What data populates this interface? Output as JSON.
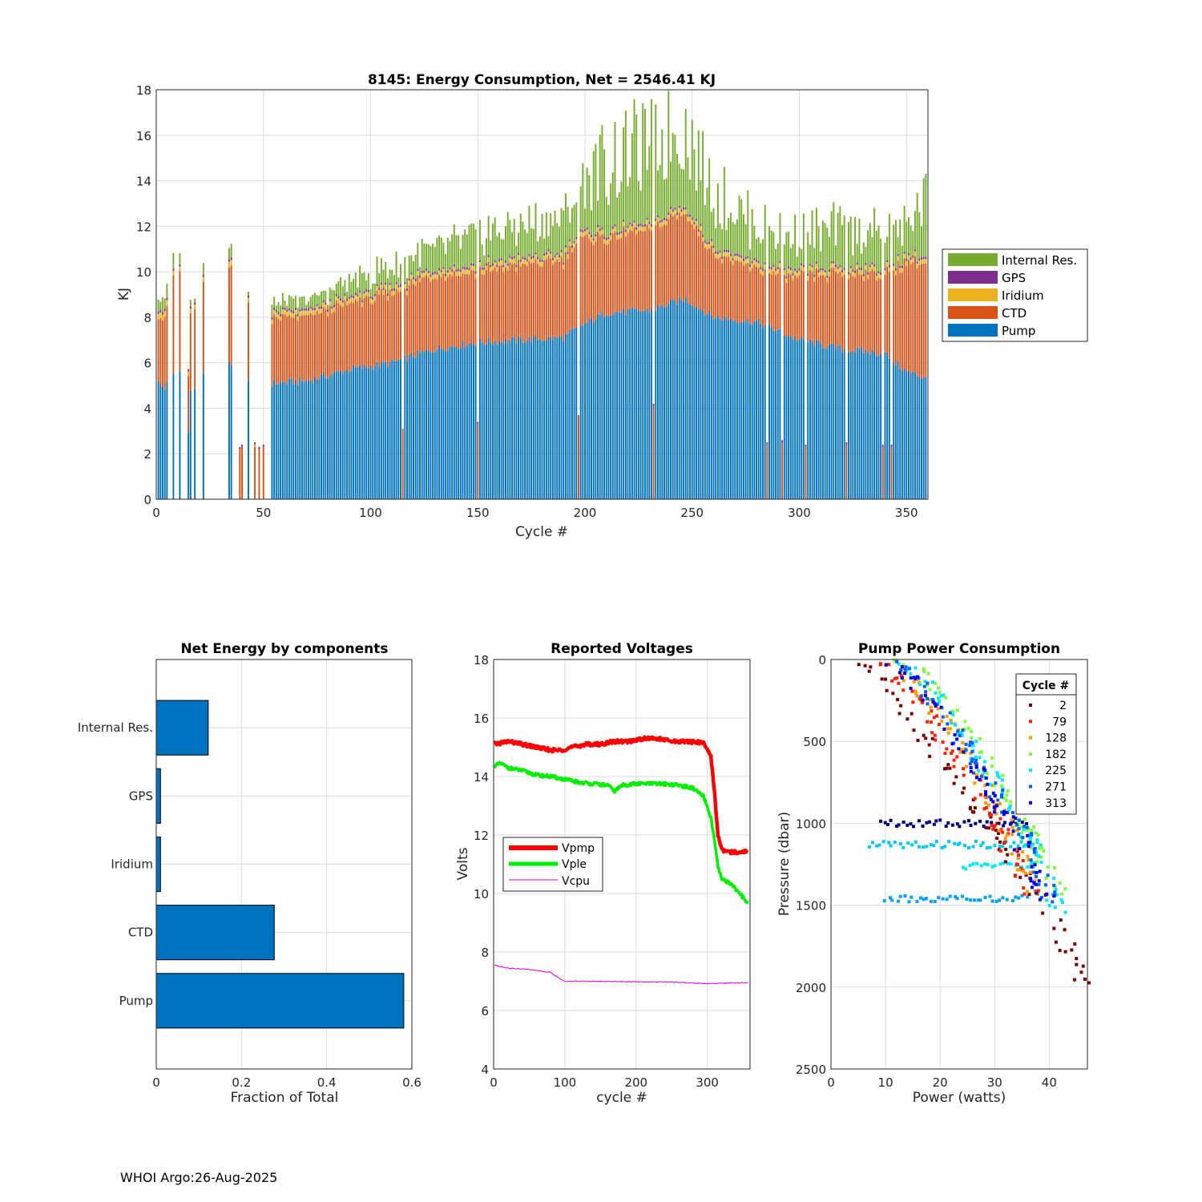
{
  "colors": {
    "Internal Res.": "#77AC30",
    "GPS": "#7E2F8E",
    "Iridium": "#EDB120",
    "CTD": "#D95319",
    "Pump": "#0072BD"
  },
  "footer": "WHOI Argo:26-Aug-2025",
  "chart_data": [
    {
      "id": "energy",
      "type": "bar",
      "stacked": true,
      "title": "8145: Energy Consumption,  Net = 2546.41 KJ",
      "xlabel": "Cycle #",
      "ylabel": "KJ",
      "xlim": [
        0,
        360
      ],
      "ylim": [
        0,
        18
      ],
      "xticks": [
        0,
        50,
        100,
        150,
        200,
        250,
        300,
        350
      ],
      "yticks": [
        0,
        2,
        4,
        6,
        8,
        10,
        12,
        14,
        16,
        18
      ],
      "grid": true,
      "legend_position": "outside-right",
      "legend": [
        "Internal Res.",
        "GPS",
        "Iridium",
        "CTD",
        "Pump"
      ],
      "stack_order": [
        "Pump",
        "CTD",
        "Iridium",
        "GPS",
        "Internal Res."
      ],
      "approx_profile": {
        "cycles": [
          1,
          2,
          4,
          8,
          11,
          15,
          16,
          18,
          22,
          34,
          35,
          43,
          54,
          70,
          90,
          110,
          130,
          150,
          170,
          190,
          198,
          210,
          230,
          247,
          260,
          280,
          300,
          320,
          340,
          350,
          357
        ],
        "Pump": [
          5.1,
          5.0,
          4.9,
          5.5,
          5.6,
          3.0,
          4.8,
          4.7,
          5.7,
          6.0,
          6.0,
          5.4,
          5.1,
          5.2,
          5.7,
          6.0,
          6.6,
          6.9,
          7.0,
          7.1,
          7.6,
          8.2,
          8.3,
          8.8,
          8.0,
          7.8,
          7.0,
          6.6,
          6.4,
          5.6,
          5.4
        ],
        "CTD": [
          2.9,
          3.0,
          3.0,
          4.3,
          4.2,
          2.4,
          3.2,
          3.3,
          4.2,
          4.3,
          4.3,
          3.4,
          2.8,
          2.8,
          2.9,
          3.0,
          3.3,
          3.1,
          3.3,
          3.4,
          3.8,
          3.3,
          3.5,
          3.8,
          2.8,
          2.3,
          2.7,
          3.3,
          3.5,
          4.8,
          5.0
        ],
        "Iridium": [
          0.25,
          0.25,
          0.25,
          0.2,
          0.2,
          0.2,
          0.2,
          0.2,
          0.2,
          0.25,
          0.25,
          0.2,
          0.2,
          0.2,
          0.2,
          0.2,
          0.2,
          0.2,
          0.2,
          0.2,
          0.2,
          0.2,
          0.2,
          0.2,
          0.2,
          0.2,
          0.2,
          0.2,
          0.2,
          0.2,
          0.2
        ],
        "GPS": [
          0.12,
          0.12,
          0.12,
          0.1,
          0.1,
          0.1,
          0.1,
          0.1,
          0.1,
          0.12,
          0.12,
          0.1,
          0.1,
          0.1,
          0.1,
          0.1,
          0.1,
          0.1,
          0.1,
          0.1,
          0.1,
          0.1,
          0.1,
          0.1,
          0.1,
          0.1,
          0.1,
          0.1,
          0.1,
          0.1,
          0.1
        ],
        "Internal Res.": [
          0.6,
          0.5,
          0.4,
          0.5,
          0.4,
          0.0,
          0.3,
          0.3,
          0.4,
          0.6,
          0.5,
          0.4,
          0.4,
          0.4,
          0.7,
          0.9,
          1.0,
          1.4,
          1.5,
          1.6,
          2.3,
          3.2,
          3.6,
          3.6,
          2.6,
          1.7,
          1.6,
          1.7,
          1.6,
          1.4,
          2.5
        ]
      },
      "partial_cycles": [
        {
          "cycle": 39,
          "CTD": 2.2,
          "GPS": 0.1
        },
        {
          "cycle": 40,
          "CTD": 2.3,
          "GPS": 0.1
        },
        {
          "cycle": 46,
          "CTD": 2.3,
          "Iridium": 0.1,
          "GPS": 0.1
        },
        {
          "cycle": 48,
          "CTD": 2.2,
          "GPS": 0.1
        },
        {
          "cycle": 50,
          "CTD": 2.3,
          "GPS": 0.1
        },
        {
          "cycle": 115,
          "CTD": 3.1
        },
        {
          "cycle": 150,
          "CTD": 3.3,
          "GPS": 0.1
        },
        {
          "cycle": 197,
          "CTD": 3.7
        },
        {
          "cycle": 232,
          "CTD": 4.1,
          "GPS": 0.1
        },
        {
          "cycle": 285,
          "CTD": 2.4,
          "GPS": 0.1
        },
        {
          "cycle": 292,
          "CTD": 2.5,
          "GPS": 0.1
        },
        {
          "cycle": 303,
          "CTD": 2.3,
          "GPS": 0.1
        },
        {
          "cycle": 322,
          "CTD": 2.4,
          "GPS": 0.1
        },
        {
          "cycle": 339,
          "CTD": 2.3,
          "GPS": 0.1
        },
        {
          "cycle": 343,
          "CTD": 2.3,
          "GPS": 0.1
        }
      ],
      "missing_cycles": [
        6,
        7,
        9,
        10,
        12,
        13,
        14,
        17,
        19,
        20,
        21,
        23,
        24,
        25,
        26,
        27,
        28,
        29,
        30,
        31,
        32,
        33,
        36,
        37,
        38,
        41,
        42,
        44,
        45,
        47,
        49,
        51,
        52,
        53
      ]
    },
    {
      "id": "components",
      "type": "bar",
      "orientation": "horizontal",
      "title": "Net Energy by components",
      "xlabel": "Fraction of Total",
      "ylabel": "",
      "xlim": [
        0,
        0.6
      ],
      "xticks": [
        0,
        0.2,
        0.4,
        0.6
      ],
      "categories": [
        "Internal Res.",
        "GPS",
        "Iridium",
        "CTD",
        "Pump"
      ],
      "values": [
        0.122,
        0.01,
        0.01,
        0.277,
        0.581
      ]
    },
    {
      "id": "voltages",
      "type": "line",
      "title": "Reported Voltages",
      "xlabel": "cycle #",
      "ylabel": "Volts",
      "xlim": [
        0,
        360
      ],
      "ylim": [
        4,
        18
      ],
      "xticks": [
        0,
        100,
        200,
        300
      ],
      "yticks": [
        4,
        6,
        8,
        10,
        12,
        14,
        16,
        18
      ],
      "legend_position": "center-left",
      "series": [
        {
          "name": "Vpmp",
          "color": "#ff0000",
          "x": [
            1,
            20,
            40,
            60,
            80,
            95,
            110,
            130,
            150,
            170,
            190,
            210,
            230,
            250,
            270,
            295,
            305,
            310,
            315,
            320,
            330,
            357
          ],
          "y": [
            15.1,
            15.2,
            15.1,
            15.0,
            14.9,
            14.9,
            15.0,
            15.1,
            15.1,
            15.2,
            15.2,
            15.3,
            15.3,
            15.2,
            15.2,
            15.15,
            14.7,
            13.5,
            12.0,
            11.5,
            11.4,
            11.45
          ]
        },
        {
          "name": "Vple",
          "color": "#00ee00",
          "x": [
            1,
            10,
            20,
            40,
            60,
            80,
            100,
            120,
            140,
            160,
            170,
            180,
            200,
            220,
            240,
            260,
            280,
            295,
            305,
            310,
            315,
            320,
            335,
            345,
            357
          ],
          "y": [
            14.35,
            14.45,
            14.3,
            14.2,
            14.05,
            14.0,
            13.9,
            13.8,
            13.75,
            13.7,
            13.5,
            13.7,
            13.75,
            13.75,
            13.75,
            13.7,
            13.6,
            13.3,
            12.6,
            11.8,
            10.9,
            10.5,
            10.3,
            10.0,
            9.7
          ]
        },
        {
          "name": "Vcpu",
          "color": "#dd00dd",
          "x": [
            1,
            20,
            50,
            80,
            95,
            100,
            150,
            200,
            250,
            300,
            357
          ],
          "y": [
            7.55,
            7.45,
            7.4,
            7.3,
            7.05,
            7.0,
            7.0,
            6.98,
            6.97,
            6.92,
            6.95
          ]
        }
      ]
    },
    {
      "id": "pump_power",
      "type": "scatter",
      "title": "Pump Power Consumption",
      "xlabel": "Power (watts)",
      "ylabel": "Pressure (dbar)",
      "xlim": [
        0,
        47
      ],
      "ylim": [
        0,
        2500
      ],
      "y_reversed": true,
      "xticks": [
        0,
        10,
        20,
        30,
        40
      ],
      "yticks": [
        0,
        500,
        1000,
        1500,
        2000,
        2500
      ],
      "legend_title": "Cycle #",
      "legend_position": "top-right",
      "series": [
        {
          "name": "2",
          "color": "#800000",
          "approx_line": {
            "x": [
              4,
              8,
              14,
              20,
              26,
              32,
              38,
              41,
              44,
              47
            ],
            "y": [
              0,
              100,
              350,
              600,
              850,
              1150,
              1450,
              1600,
              1800,
              2000
            ]
          }
        },
        {
          "name": "79",
          "color": "#ff2000",
          "approx_line": {
            "x": [
              8,
              12,
              17,
              22,
              27,
              31,
              34,
              37
            ],
            "y": [
              0,
              100,
              300,
              550,
              800,
              1050,
              1250,
              1450
            ]
          }
        },
        {
          "name": "128",
          "color": "#ff9a00",
          "approx_line": {
            "x": [
              10,
              14,
              19,
              24,
              28,
              32,
              35,
              38
            ],
            "y": [
              0,
              100,
              300,
              500,
              750,
              1000,
              1250,
              1450
            ]
          }
        },
        {
          "name": "182",
          "color": "#7cff40",
          "approx_line": {
            "x": [
              13,
              17,
              22,
              27,
              32,
              36,
              39,
              42
            ],
            "y": [
              0,
              100,
              300,
              550,
              800,
              1050,
              1250,
              1450
            ]
          }
        },
        {
          "name": "225",
          "color": "#00e8ff",
          "approx_line": {
            "x": [
              12,
              16,
              21,
              26,
              31,
              36,
              39,
              42
            ],
            "y": [
              0,
              100,
              300,
              550,
              800,
              1050,
              1300,
              1550
            ]
          }
        },
        {
          "name": "271",
          "color": "#0060ff",
          "approx_line": {
            "x": [
              11,
              15,
              20,
              25,
              30,
              35,
              38,
              41
            ],
            "y": [
              0,
              100,
              300,
              550,
              800,
              1050,
              1300,
              1500
            ]
          }
        },
        {
          "name": "313",
          "color": "#0000e0",
          "approx_line": {
            "x": [
              10,
              14,
              19,
              24,
              29,
              34,
              37,
              40
            ],
            "y": [
              0,
              100,
              300,
              550,
              800,
              1050,
              1300,
              1500
            ]
          }
        }
      ],
      "horizontal_bands": [
        {
          "pressure": 1000,
          "x_range": [
            9,
            36
          ],
          "color": "#00007f"
        },
        {
          "pressure": 1130,
          "x_range": [
            7,
            38
          ],
          "color": "#00c8ff"
        },
        {
          "pressure": 1260,
          "x_range": [
            24,
            38
          ],
          "color": "#00e8ff"
        },
        {
          "pressure": 1460,
          "x_range": [
            10,
            36
          ],
          "color": "#00a0ff"
        }
      ]
    }
  ]
}
